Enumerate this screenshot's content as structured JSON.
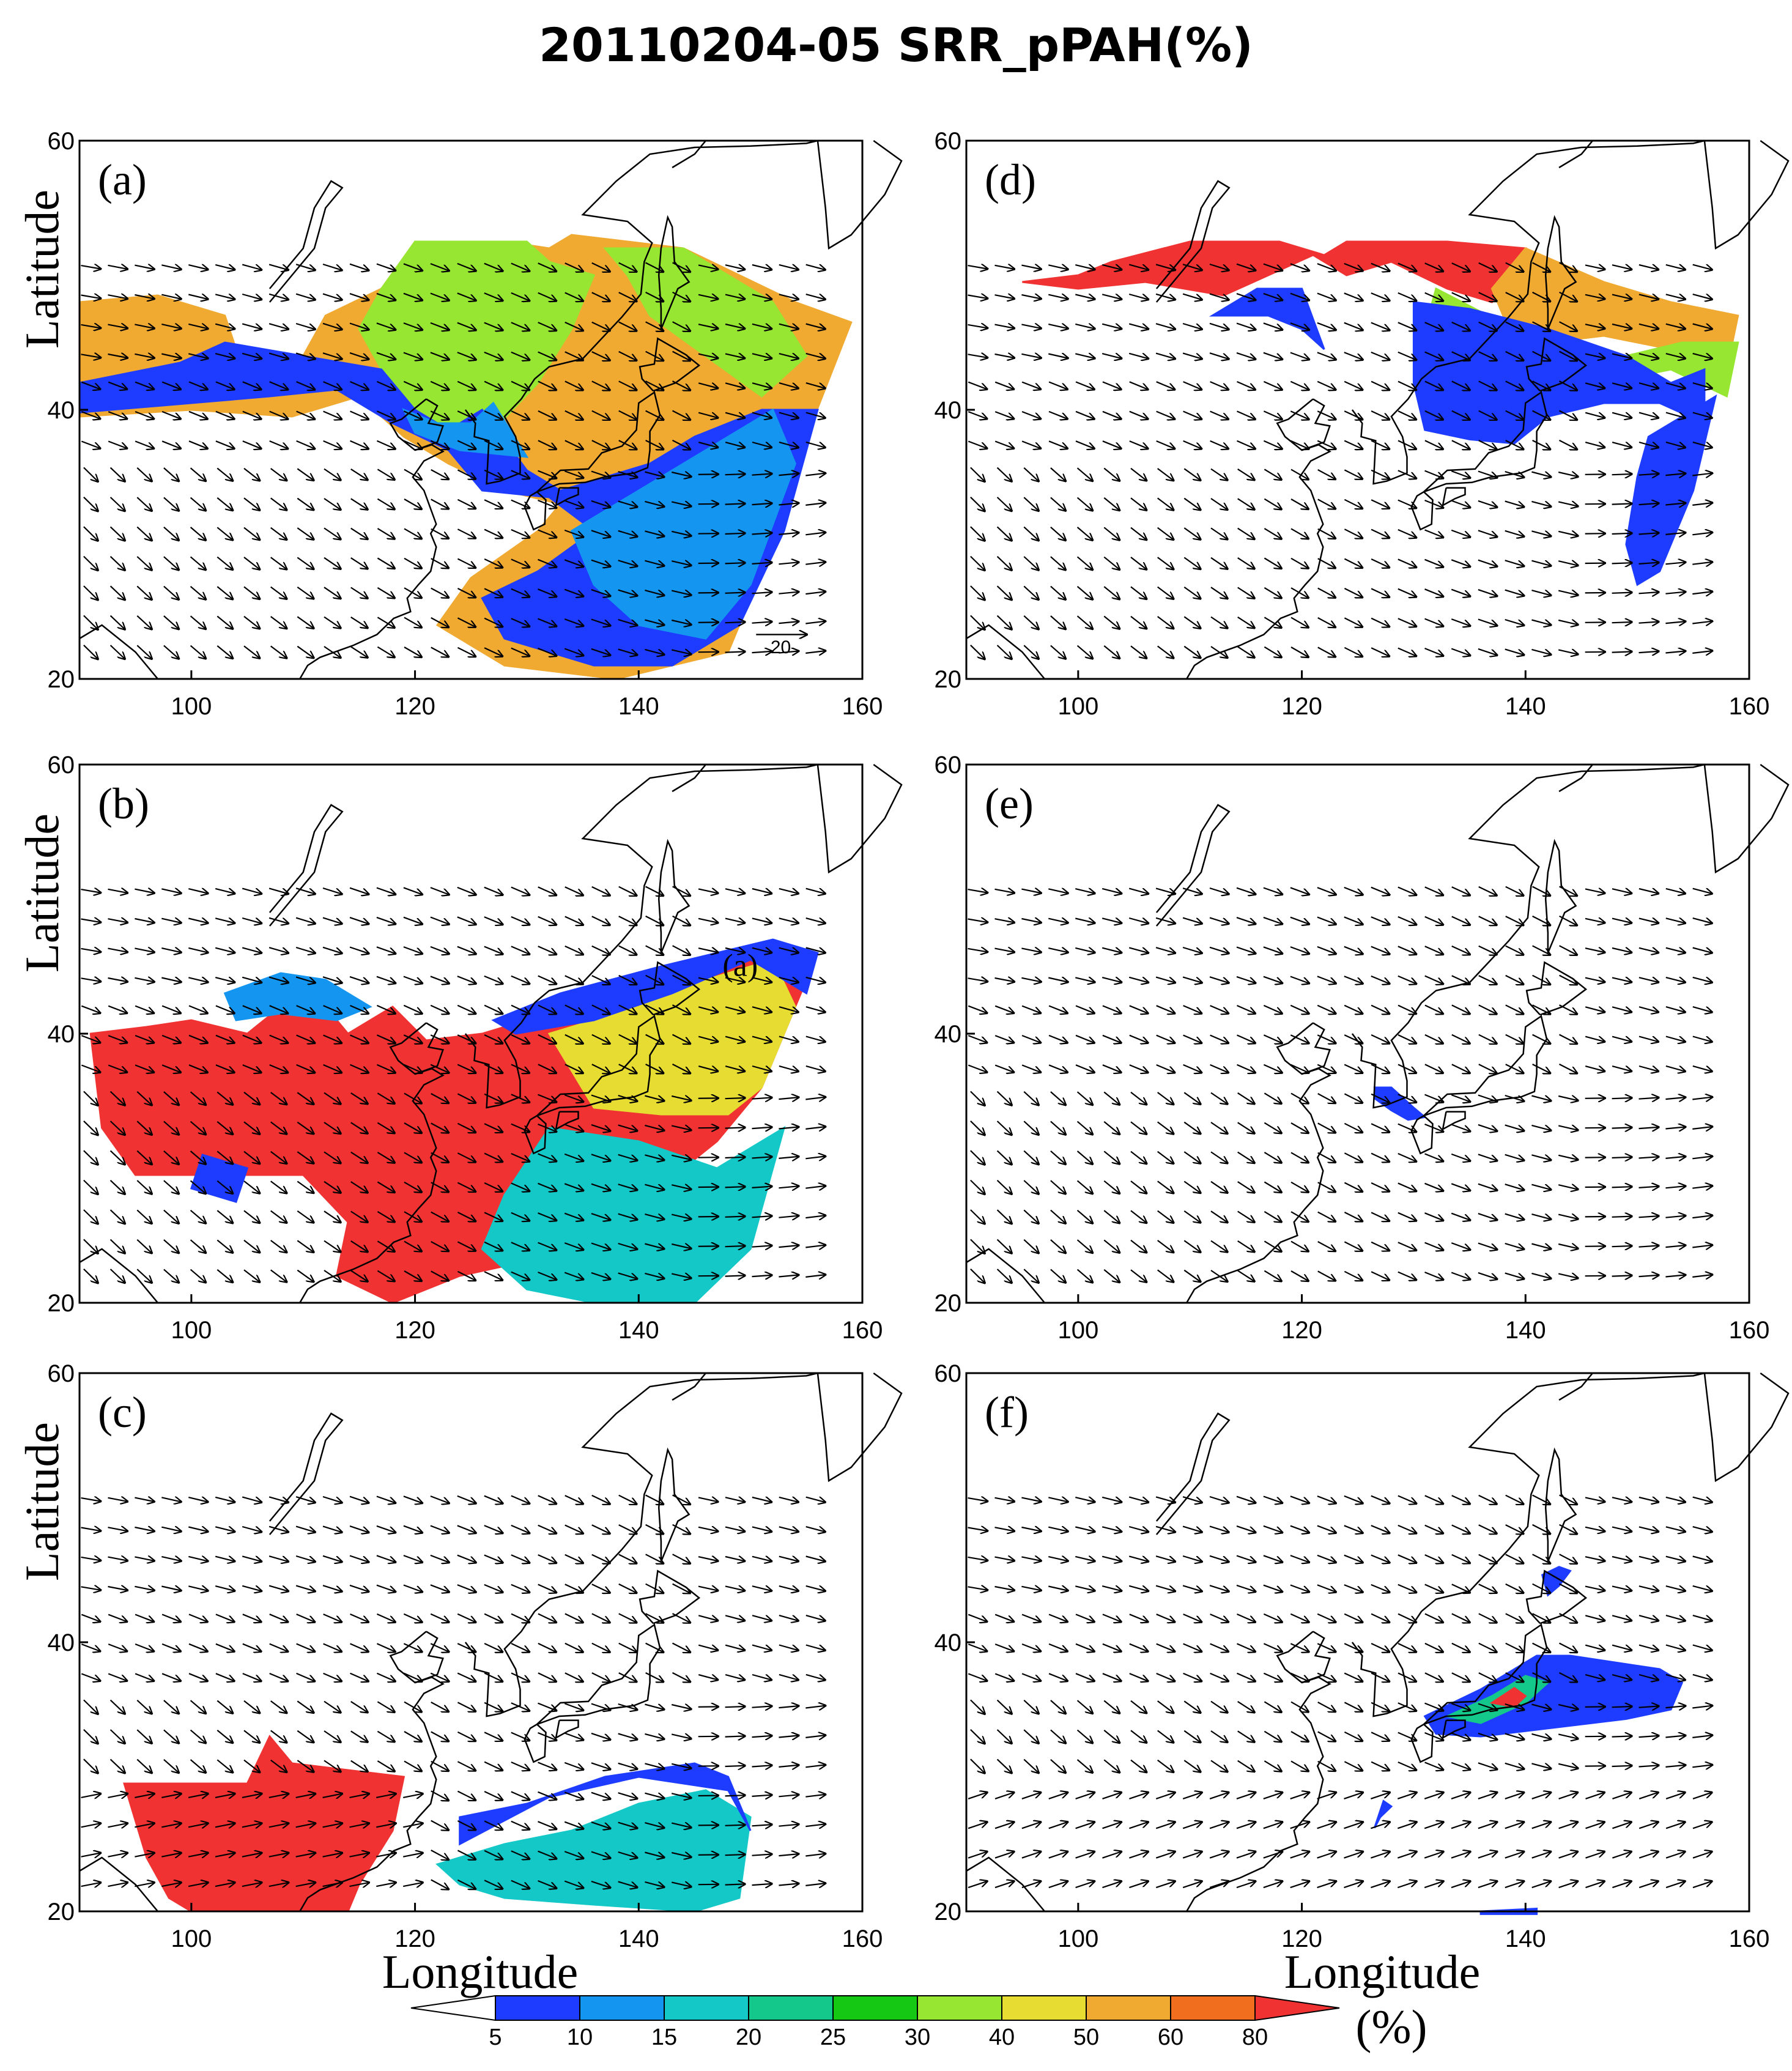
{
  "title": "20110204-05 SRR_pPAH(%)",
  "axis": {
    "x_label": "Longitude",
    "y_label": "Latitude",
    "x_ticks": [
      "100",
      "120",
      "140",
      "160"
    ],
    "y_ticks": [
      "60",
      "40",
      "20"
    ],
    "lon_range": [
      90,
      160
    ],
    "lat_range": [
      20,
      60
    ]
  },
  "panels": [
    {
      "id": "a",
      "label": "(a)",
      "has_reference_vector": true,
      "reference_vector_label": "20"
    },
    {
      "id": "d",
      "label": "(d)"
    },
    {
      "id": "b",
      "label": "(b)",
      "extra_text": "(a)"
    },
    {
      "id": "e",
      "label": "(e)"
    },
    {
      "id": "c",
      "label": "(c)"
    },
    {
      "id": "f",
      "label": "(f)"
    }
  ],
  "colorbar": {
    "levels": [
      "5",
      "10",
      "15",
      "20",
      "25",
      "30",
      "40",
      "50",
      "60",
      "80"
    ],
    "colors": [
      "#ffffff",
      "#1e3cff",
      "#1496f0",
      "#14c8c8",
      "#14c88c",
      "#14c814",
      "#96e632",
      "#e6dc32",
      "#f0aa32",
      "#f06e1e",
      "#f03232"
    ],
    "unit": "(%)"
  }
}
